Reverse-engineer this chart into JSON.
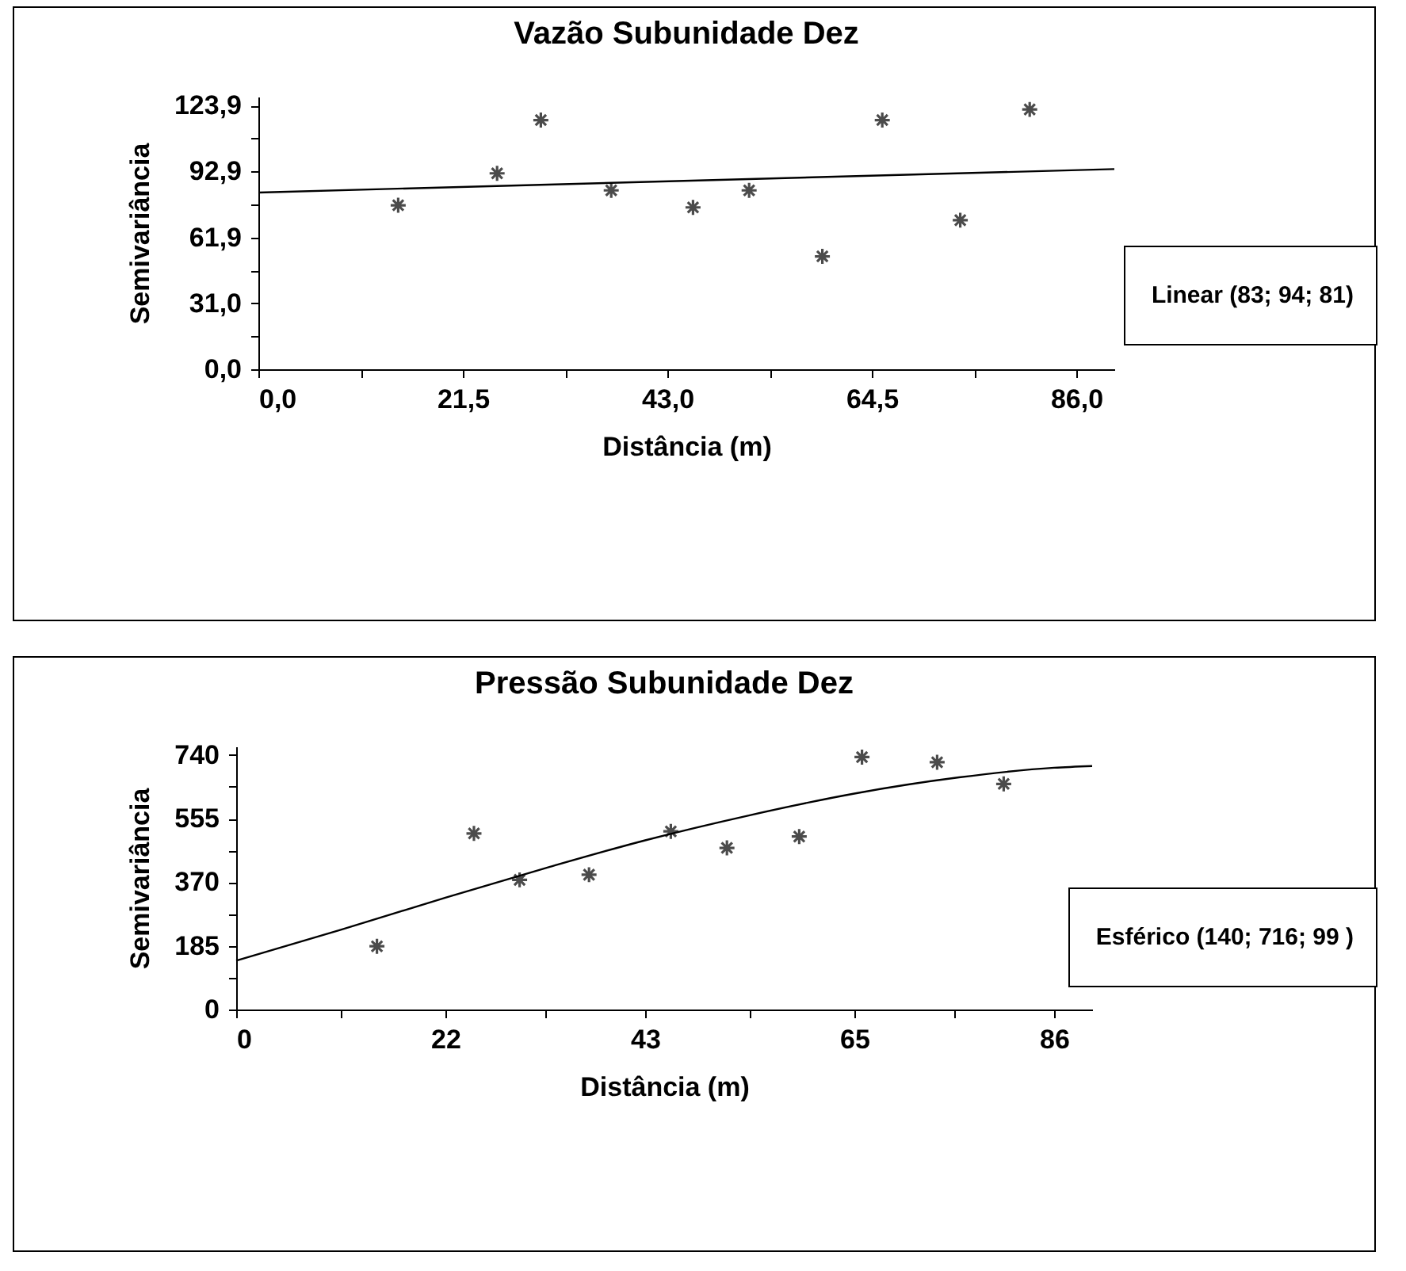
{
  "chart_data": [
    {
      "type": "scatter",
      "title": "Vazão Subunidade Dez",
      "xlabel": "Distância (m)",
      "ylabel": "Semivariância",
      "annotations": [
        "Linear (83; 94; 81)"
      ],
      "grid": false,
      "marker": "cross",
      "xlim": [
        0,
        90
      ],
      "ylim": [
        0,
        128
      ],
      "xticks": [
        {
          "value": 0,
          "label": "0,0"
        },
        {
          "value": 10.75,
          "label": null
        },
        {
          "value": 21.5,
          "label": "21,5"
        },
        {
          "value": 32.25,
          "label": null
        },
        {
          "value": 43,
          "label": "43,0"
        },
        {
          "value": 53.75,
          "label": null
        },
        {
          "value": 64.5,
          "label": "64,5"
        },
        {
          "value": 75.25,
          "label": null
        },
        {
          "value": 86,
          "label": "86,0"
        }
      ],
      "yticks": [
        {
          "value": 0,
          "label": "0,0"
        },
        {
          "value": 15.5,
          "label": null
        },
        {
          "value": 31,
          "label": "31,0"
        },
        {
          "value": 46.4,
          "label": null
        },
        {
          "value": 61.9,
          "label": "61,9"
        },
        {
          "value": 77.4,
          "label": null
        },
        {
          "value": 92.9,
          "label": "92,9"
        },
        {
          "value": 108.4,
          "label": null
        },
        {
          "value": 123.9,
          "label": "123,9"
        }
      ],
      "series": [
        {
          "type": "scatter",
          "color": "#000000",
          "x": [
            14.7,
            25.1,
            29.7,
            37.1,
            45.7,
            51.6,
            59.3,
            65.6,
            73.8,
            81.1
          ],
          "values": [
            77,
            92,
            117,
            84,
            76,
            84,
            53,
            117,
            70,
            122
          ]
        },
        {
          "type": "line",
          "color": "#000000",
          "line_style": "solid",
          "marker": "none",
          "x": [
            0,
            90
          ],
          "values": [
            83,
            94
          ]
        }
      ]
    },
    {
      "type": "scatter",
      "title": "Pressão Subunidade Dez",
      "xlabel": "Distância (m)",
      "ylabel": "Semivariância",
      "annotations": [
        "Esférico (140; 716; 99 )"
      ],
      "grid": false,
      "marker": "cross",
      "xlim": [
        0,
        90
      ],
      "ylim": [
        0,
        765
      ],
      "xticks": [
        0,
        {
          "value": 11,
          "label": null
        },
        22,
        {
          "value": 32.5,
          "label": null
        },
        43,
        {
          "value": 54,
          "label": null
        },
        65,
        {
          "value": 75.5,
          "label": null
        },
        86
      ],
      "yticks": [
        0,
        {
          "value": 92.5,
          "label": null
        },
        185,
        {
          "value": 277.5,
          "label": null
        },
        370,
        {
          "value": 462.5,
          "label": null
        },
        555,
        {
          "value": 647.5,
          "label": null
        },
        740
      ],
      "series": [
        {
          "type": "scatter",
          "color": "#000000",
          "x": [
            14.8,
            25.0,
            29.8,
            37.1,
            45.7,
            51.6,
            59.2,
            65.8,
            73.7,
            80.7
          ],
          "values": [
            184,
            512,
            377,
            392,
            518,
            470,
            503,
            734,
            719,
            656
          ]
        },
        {
          "type": "line",
          "color": "#000000",
          "line_style": "solid",
          "marker": "none",
          "x": [
            0,
            11,
            22,
            33,
            43,
            54,
            65,
            76,
            86,
            90
          ],
          "values": [
            142,
            232,
            325,
            415,
            492,
            565,
            628,
            675,
            703,
            708
          ]
        }
      ]
    }
  ]
}
